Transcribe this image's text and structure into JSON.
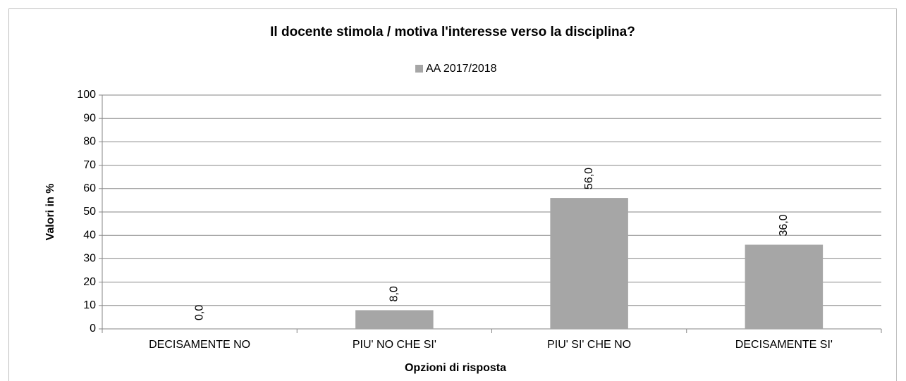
{
  "chart_data": {
    "type": "bar",
    "title": "Il docente stimola / motiva l'interesse verso la disciplina?",
    "x_label": "Opzioni di risposta",
    "y_label": "Valori in %",
    "categories": [
      "DECISAMENTE NO",
      "PIU' NO CHE SI'",
      "PIU' SI' CHE NO",
      "DECISAMENTE SI'"
    ],
    "series": [
      {
        "name": "AA 2017/2018",
        "color": "#a6a6a6",
        "values": [
          0,
          8,
          56,
          36
        ],
        "value_labels": [
          "0,0",
          "8,0",
          "56,0",
          "36,0"
        ]
      }
    ],
    "ylim": [
      0,
      100
    ],
    "yticks": [
      0,
      10,
      20,
      30,
      40,
      50,
      60,
      70,
      80,
      90,
      100
    ],
    "grid": true,
    "legend": "top"
  }
}
